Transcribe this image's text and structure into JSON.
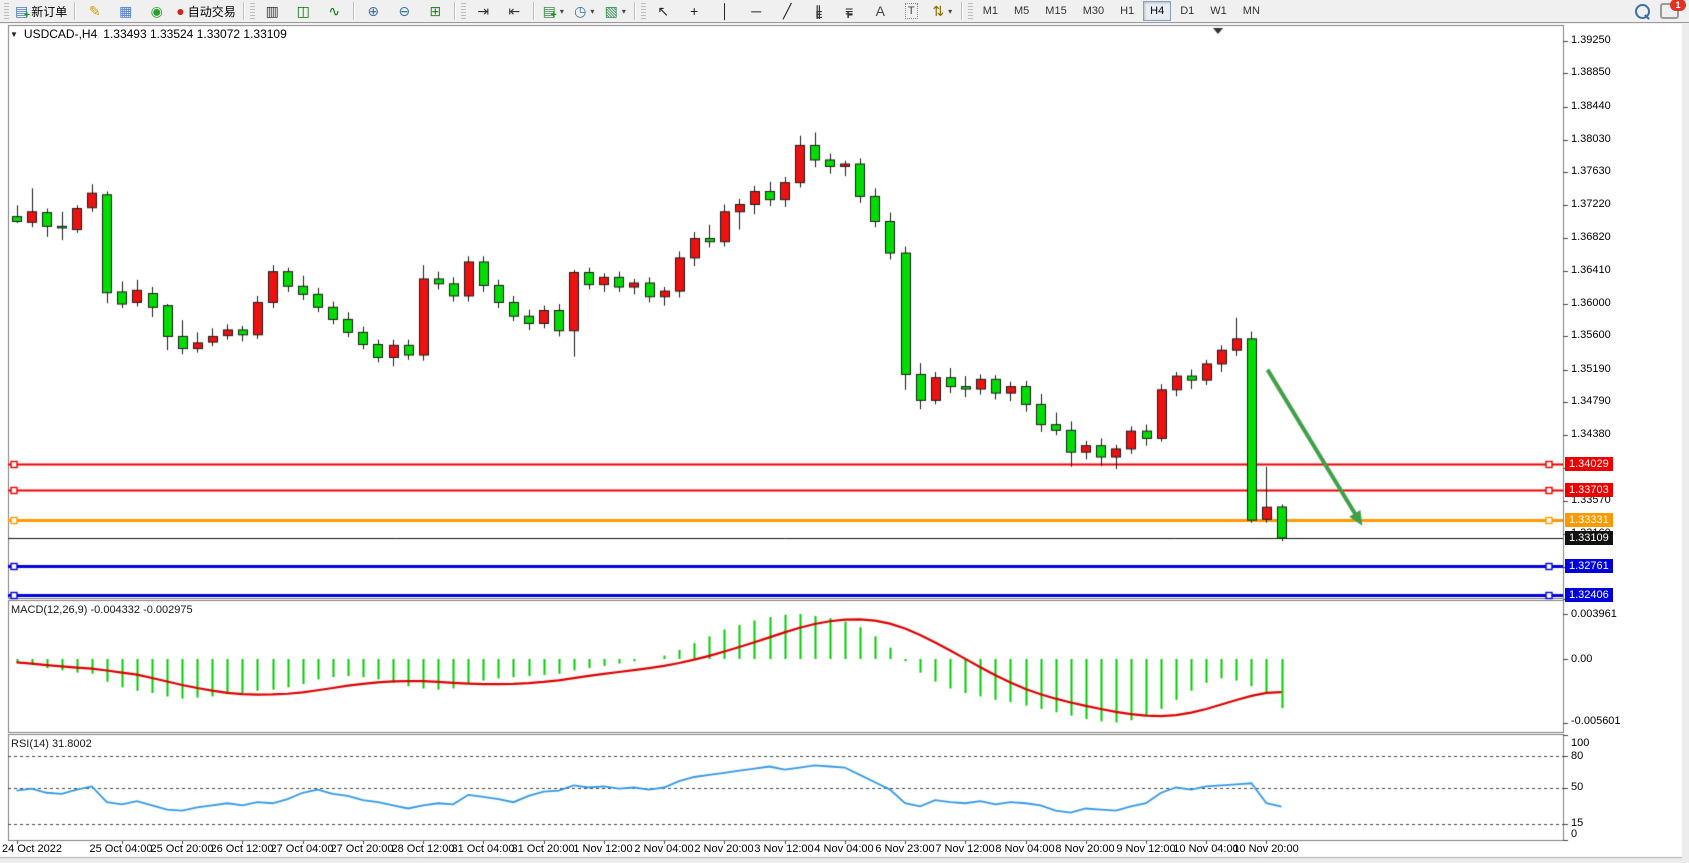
{
  "toolbar": {
    "buttons": [
      {
        "type": "grip"
      },
      {
        "type": "button",
        "name": "new-order",
        "glyph": "▤",
        "color": "#4a7ab5",
        "badge": "+",
        "label": "新订单"
      },
      {
        "type": "sep"
      },
      {
        "type": "button",
        "name": "market-watch",
        "glyph": "✎",
        "color": "#d89c00"
      },
      {
        "type": "button",
        "name": "data-window",
        "glyph": "▦",
        "color": "#4a78c8"
      },
      {
        "type": "button",
        "name": "signals",
        "glyph": "◉",
        "color": "#2aa02a"
      },
      {
        "type": "button",
        "name": "autotrading",
        "glyph": "●",
        "color": "#cc2222",
        "label": "自动交易"
      },
      {
        "type": "sep"
      },
      {
        "type": "grip"
      },
      {
        "type": "button",
        "name": "chart-bars",
        "glyph": "▥",
        "color": "#333333"
      },
      {
        "type": "button",
        "name": "chart-candles",
        "glyph": "◫",
        "color": "#007700"
      },
      {
        "type": "button",
        "name": "chart-line",
        "glyph": "∿",
        "color": "#007700"
      },
      {
        "type": "sep"
      },
      {
        "type": "button",
        "name": "zoom-in",
        "glyph": "⊕",
        "color": "#3a6ea5"
      },
      {
        "type": "button",
        "name": "zoom-out",
        "glyph": "⊖",
        "color": "#3a6ea5"
      },
      {
        "type": "button",
        "name": "tile-windows",
        "glyph": "⊞",
        "color": "#2a8a2a"
      },
      {
        "type": "sep"
      },
      {
        "type": "grip"
      },
      {
        "type": "button",
        "name": "auto-scroll",
        "glyph": "⇥",
        "color": "#333333"
      },
      {
        "type": "button",
        "name": "chart-shift",
        "glyph": "⇤",
        "color": "#333333"
      },
      {
        "type": "sep"
      },
      {
        "type": "button",
        "name": "new-chart",
        "glyph": "▤",
        "color": "#3a8a4a",
        "badge": "+",
        "dropdown": true
      },
      {
        "type": "button",
        "name": "profiles",
        "glyph": "◷",
        "color": "#3a6ea5",
        "dropdown": true
      },
      {
        "type": "button",
        "name": "templates",
        "glyph": "▧",
        "color": "#2a8a4a",
        "dropdown": true
      },
      {
        "type": "sep"
      },
      {
        "type": "grip"
      },
      {
        "type": "button",
        "name": "cursor",
        "glyph": "↖",
        "color": "#222222"
      },
      {
        "type": "button",
        "name": "crosshair",
        "glyph": "+",
        "color": "#222222"
      },
      {
        "type": "button",
        "name": "vertical-line",
        "glyph": "│",
        "color": "#222222"
      },
      {
        "type": "button",
        "name": "horizontal-line",
        "glyph": "─",
        "color": "#222222"
      },
      {
        "type": "button",
        "name": "trendline",
        "glyph": "╱",
        "color": "#222222"
      },
      {
        "type": "button",
        "name": "equidistant-channel",
        "glyph": "∥",
        "color": "#222222",
        "badge": "E",
        "badge_color": "#333"
      },
      {
        "type": "button",
        "name": "fibonacci",
        "glyph": "≡",
        "color": "#222222",
        "badge": "F",
        "badge_color": "#333"
      },
      {
        "type": "button",
        "name": "text",
        "glyph": "A",
        "color": "#444444"
      },
      {
        "type": "button",
        "name": "text-label",
        "glyph": "T",
        "color": "#444444",
        "boxed": true
      },
      {
        "type": "button",
        "name": "arrows",
        "glyph": "⇅",
        "color": "#8a6a00",
        "dropdown": true
      },
      {
        "type": "sep"
      },
      {
        "type": "grip"
      }
    ],
    "timeframes": [
      "M1",
      "M5",
      "M15",
      "M30",
      "H1",
      "H4",
      "D1",
      "W1",
      "MN"
    ],
    "active_timeframe": "H4",
    "notifications_badge": "1"
  },
  "chart": {
    "title": {
      "collapse_glyph": "▼",
      "symbol": "USDCAD-,H4",
      "ohlc": "1.33493 1.33524 1.33072 1.33109"
    },
    "price_axis_ticks": [
      "1.39250",
      "1.38850",
      "1.38440",
      "1.38030",
      "1.37630",
      "1.37220",
      "1.36820",
      "1.36410",
      "1.36000",
      "1.35600",
      "1.35190",
      "1.34790",
      "1.34380",
      "1.33970",
      "1.33570",
      "1.33160",
      "1.32750",
      "1.32350"
    ],
    "hlines": [
      {
        "price": 1.34029,
        "label": "1.34029",
        "color": "#ee0000",
        "width": 2,
        "handles": true
      },
      {
        "price": 1.33703,
        "label": "1.33703",
        "color": "#ee0000",
        "width": 2,
        "handles": true
      },
      {
        "price": 1.33331,
        "label": "1.33331",
        "color": "#ff9900",
        "width": 3,
        "handles": true
      },
      {
        "price": 1.33109,
        "label": "1.33109",
        "color": "#111111",
        "width": 1,
        "handles": false
      },
      {
        "price": 1.32761,
        "label": "1.32761",
        "color": "#0000dd",
        "width": 3,
        "handles": true
      },
      {
        "price": 1.32406,
        "label": "1.32406",
        "color": "#0000dd",
        "width": 3,
        "handles": true
      }
    ],
    "arrow": {
      "from_bar": 83.5,
      "from_price": 1.3519,
      "to_bar": 89.8,
      "to_price": 1.3326,
      "color": "#3fa046"
    }
  },
  "chart_data": {
    "type": "candlestick",
    "symbol": "USDCAD",
    "timeframe": "H4",
    "colors": {
      "bull": "#ee1111",
      "bear": "#00dd00",
      "outline": "#1a1a1a",
      "macd_hist": "#00cc00",
      "macd_signal": "#dd0000",
      "rsi_line": "#3399e6"
    },
    "candles": [
      [
        1.3708,
        1.3722,
        1.37,
        1.3702
      ],
      [
        1.3701,
        1.3743,
        1.3695,
        1.3714
      ],
      [
        1.3713,
        1.3718,
        1.3683,
        1.3696
      ],
      [
        1.3696,
        1.3714,
        1.3679,
        1.3694
      ],
      [
        1.3692,
        1.3722,
        1.3688,
        1.3718
      ],
      [
        1.3719,
        1.3748,
        1.3714,
        1.3737
      ],
      [
        1.3735,
        1.3739,
        1.3601,
        1.3614
      ],
      [
        1.3615,
        1.3628,
        1.3595,
        1.36
      ],
      [
        1.3602,
        1.363,
        1.3597,
        1.3617
      ],
      [
        1.3613,
        1.3621,
        1.3584,
        1.3596
      ],
      [
        1.3598,
        1.36,
        1.3543,
        1.356
      ],
      [
        1.356,
        1.358,
        1.3538,
        1.3545
      ],
      [
        1.3545,
        1.3565,
        1.354,
        1.3552
      ],
      [
        1.3553,
        1.357,
        1.3548,
        1.356
      ],
      [
        1.3561,
        1.3575,
        1.3556,
        1.3568
      ],
      [
        1.3568,
        1.3573,
        1.3554,
        1.3562
      ],
      [
        1.3562,
        1.361,
        1.3557,
        1.3602
      ],
      [
        1.3602,
        1.3648,
        1.3595,
        1.364
      ],
      [
        1.364,
        1.3645,
        1.3615,
        1.3622
      ],
      [
        1.3622,
        1.3635,
        1.3605,
        1.3612
      ],
      [
        1.3612,
        1.362,
        1.359,
        1.3596
      ],
      [
        1.3596,
        1.3603,
        1.3575,
        1.3581
      ],
      [
        1.3581,
        1.359,
        1.3559,
        1.3565
      ],
      [
        1.3565,
        1.3572,
        1.3544,
        1.355
      ],
      [
        1.355,
        1.3556,
        1.3528,
        1.3534
      ],
      [
        1.3534,
        1.3556,
        1.3523,
        1.3549
      ],
      [
        1.3549,
        1.3556,
        1.3531,
        1.3537
      ],
      [
        1.3537,
        1.3648,
        1.353,
        1.3631
      ],
      [
        1.3631,
        1.364,
        1.3618,
        1.3625
      ],
      [
        1.3625,
        1.3633,
        1.3603,
        1.361
      ],
      [
        1.361,
        1.3659,
        1.3603,
        1.3652
      ],
      [
        1.3652,
        1.3659,
        1.3615,
        1.3623
      ],
      [
        1.3623,
        1.363,
        1.3595,
        1.3602
      ],
      [
        1.3602,
        1.361,
        1.3579,
        1.3585
      ],
      [
        1.3585,
        1.3593,
        1.3568,
        1.3576
      ],
      [
        1.3576,
        1.3598,
        1.357,
        1.3592
      ],
      [
        1.3592,
        1.36,
        1.356,
        1.3567
      ],
      [
        1.3567,
        1.3642,
        1.3535,
        1.3639
      ],
      [
        1.3639,
        1.3645,
        1.3618,
        1.3624
      ],
      [
        1.3624,
        1.3638,
        1.3615,
        1.3633
      ],
      [
        1.3633,
        1.364,
        1.3615,
        1.3621
      ],
      [
        1.3621,
        1.3631,
        1.3612,
        1.3626
      ],
      [
        1.3626,
        1.3633,
        1.3602,
        1.3609
      ],
      [
        1.3609,
        1.3621,
        1.3598,
        1.3616
      ],
      [
        1.3616,
        1.3665,
        1.3608,
        1.3657
      ],
      [
        1.3657,
        1.3689,
        1.3647,
        1.3681
      ],
      [
        1.3681,
        1.3698,
        1.367,
        1.3677
      ],
      [
        1.3677,
        1.3723,
        1.3671,
        1.3714
      ],
      [
        1.3714,
        1.373,
        1.3692,
        1.3723
      ],
      [
        1.3723,
        1.3746,
        1.3711,
        1.3739
      ],
      [
        1.3739,
        1.3751,
        1.3721,
        1.3729
      ],
      [
        1.3729,
        1.3757,
        1.372,
        1.375
      ],
      [
        1.375,
        1.3808,
        1.3744,
        1.3796
      ],
      [
        1.3796,
        1.3812,
        1.3769,
        1.3778
      ],
      [
        1.3778,
        1.3786,
        1.3761,
        1.377
      ],
      [
        1.377,
        1.3777,
        1.3758,
        1.3773
      ],
      [
        1.3773,
        1.378,
        1.3725,
        1.3733
      ],
      [
        1.3733,
        1.3743,
        1.3695,
        1.3702
      ],
      [
        1.3702,
        1.3713,
        1.3655,
        1.3663
      ],
      [
        1.3663,
        1.3671,
        1.3494,
        1.3513
      ],
      [
        1.3513,
        1.3527,
        1.347,
        1.3481
      ],
      [
        1.3481,
        1.3516,
        1.3476,
        1.3509
      ],
      [
        1.3509,
        1.3521,
        1.349,
        1.3498
      ],
      [
        1.3498,
        1.3511,
        1.3485,
        1.3495
      ],
      [
        1.3495,
        1.3513,
        1.3488,
        1.3507
      ],
      [
        1.3507,
        1.3512,
        1.3482,
        1.349
      ],
      [
        1.349,
        1.3504,
        1.348,
        1.3498
      ],
      [
        1.3498,
        1.3505,
        1.3467,
        1.3476
      ],
      [
        1.3476,
        1.3489,
        1.3442,
        1.3451
      ],
      [
        1.3451,
        1.3466,
        1.3438,
        1.3444
      ],
      [
        1.3444,
        1.3455,
        1.3399,
        1.3417
      ],
      [
        1.3417,
        1.3431,
        1.3408,
        1.3425
      ],
      [
        1.3425,
        1.3434,
        1.34,
        1.3411
      ],
      [
        1.3411,
        1.3426,
        1.3396,
        1.3421
      ],
      [
        1.3421,
        1.3449,
        1.3415,
        1.3443
      ],
      [
        1.3443,
        1.3451,
        1.3425,
        1.3434
      ],
      [
        1.3434,
        1.3501,
        1.343,
        1.3494
      ],
      [
        1.3494,
        1.3516,
        1.3486,
        1.3511
      ],
      [
        1.3511,
        1.3519,
        1.3495,
        1.3506
      ],
      [
        1.3506,
        1.3531,
        1.35,
        1.3526
      ],
      [
        1.3526,
        1.3549,
        1.3516,
        1.3543
      ],
      [
        1.3543,
        1.3583,
        1.3536,
        1.3557
      ],
      [
        1.3557,
        1.3566,
        1.333,
        1.3333
      ],
      [
        1.3334,
        1.3399,
        1.333,
        1.3349
      ],
      [
        1.33493,
        1.33524,
        1.33072,
        1.33109
      ]
    ],
    "macd": {
      "label": "MACD(12,26,9)",
      "values_text": "-0.004332 -0.002975",
      "main_value": -0.004332,
      "signal_value": -0.002975,
      "axis": [
        "0.003961",
        "0.00",
        "-0.005601"
      ],
      "hist_x1e4": [
        -3,
        -5,
        -8,
        -10,
        -12,
        -13,
        -20,
        -25,
        -28,
        -30,
        -33,
        -35,
        -34,
        -33,
        -31,
        -30,
        -28,
        -27,
        -25,
        -22,
        -18,
        -16,
        -15,
        -16,
        -18,
        -21,
        -24,
        -26,
        -27,
        -26,
        -22,
        -19,
        -17,
        -16,
        -15,
        -14,
        -13,
        -10,
        -8,
        -6,
        -4,
        -2,
        0,
        3,
        8,
        14,
        20,
        26,
        30,
        34,
        37,
        39,
        39.6,
        38,
        36,
        33,
        28,
        20,
        10,
        -2,
        -12,
        -20,
        -26,
        -30,
        -33,
        -36,
        -38,
        -41,
        -44,
        -47,
        -50,
        -53,
        -55,
        -56,
        -54,
        -50,
        -44,
        -36,
        -28,
        -21,
        -17,
        -19,
        -24,
        -30,
        -43.3
      ]
    },
    "rsi": {
      "label": "RSI(14)",
      "value_text": "31.8002",
      "value": 31.8002,
      "axis": [
        "100",
        "80",
        "50",
        "15",
        "0"
      ],
      "levels": [
        80,
        50,
        15
      ],
      "values": [
        47,
        49,
        45,
        44,
        48,
        51,
        36,
        34,
        37,
        33,
        29,
        28,
        31,
        33,
        35,
        33,
        36,
        35,
        39,
        45,
        48,
        44,
        42,
        38,
        36,
        33,
        30,
        33,
        35,
        34,
        43,
        41,
        39,
        36,
        42,
        46,
        47,
        52,
        50,
        51,
        49,
        50,
        48,
        50,
        56,
        60,
        62,
        64,
        66,
        68,
        70,
        67,
        69,
        71,
        70,
        69,
        62,
        55,
        48,
        35,
        32,
        38,
        36,
        35,
        37,
        34,
        36,
        35,
        33,
        28,
        26,
        30,
        29,
        28,
        32,
        35,
        45,
        50,
        48,
        51,
        52,
        53,
        54,
        35,
        31.8
      ]
    },
    "time_labels": [
      {
        "i": 0,
        "label": "24 Oct 2022"
      },
      {
        "i": 7,
        "label": "25 Oct 04:00"
      },
      {
        "i": 11,
        "label": "25 Oct 20:00"
      },
      {
        "i": 15,
        "label": "26 Oct 12:00"
      },
      {
        "i": 19,
        "label": "27 Oct 04:00"
      },
      {
        "i": 23,
        "label": "27 Oct 20:00"
      },
      {
        "i": 27,
        "label": "28 Oct 12:00"
      },
      {
        "i": 31,
        "label": "31 Oct 04:00"
      },
      {
        "i": 35,
        "label": "31 Oct 20:00"
      },
      {
        "i": 39,
        "label": "1 Nov 12:00"
      },
      {
        "i": 43,
        "label": "2 Nov 04:00"
      },
      {
        "i": 47,
        "label": "2 Nov 20:00"
      },
      {
        "i": 51,
        "label": "3 Nov 12:00"
      },
      {
        "i": 55,
        "label": "4 Nov 04:00"
      },
      {
        "i": 59,
        "label": "6 Nov 23:00"
      },
      {
        "i": 63,
        "label": "7 Nov 12:00"
      },
      {
        "i": 67,
        "label": "8 Nov 04:00"
      },
      {
        "i": 71,
        "label": "8 Nov 20:00"
      },
      {
        "i": 75,
        "label": "9 Nov 12:00"
      },
      {
        "i": 79,
        "label": "10 Nov 04:00"
      },
      {
        "i": 83,
        "label": "10 Nov 20:00"
      }
    ]
  }
}
